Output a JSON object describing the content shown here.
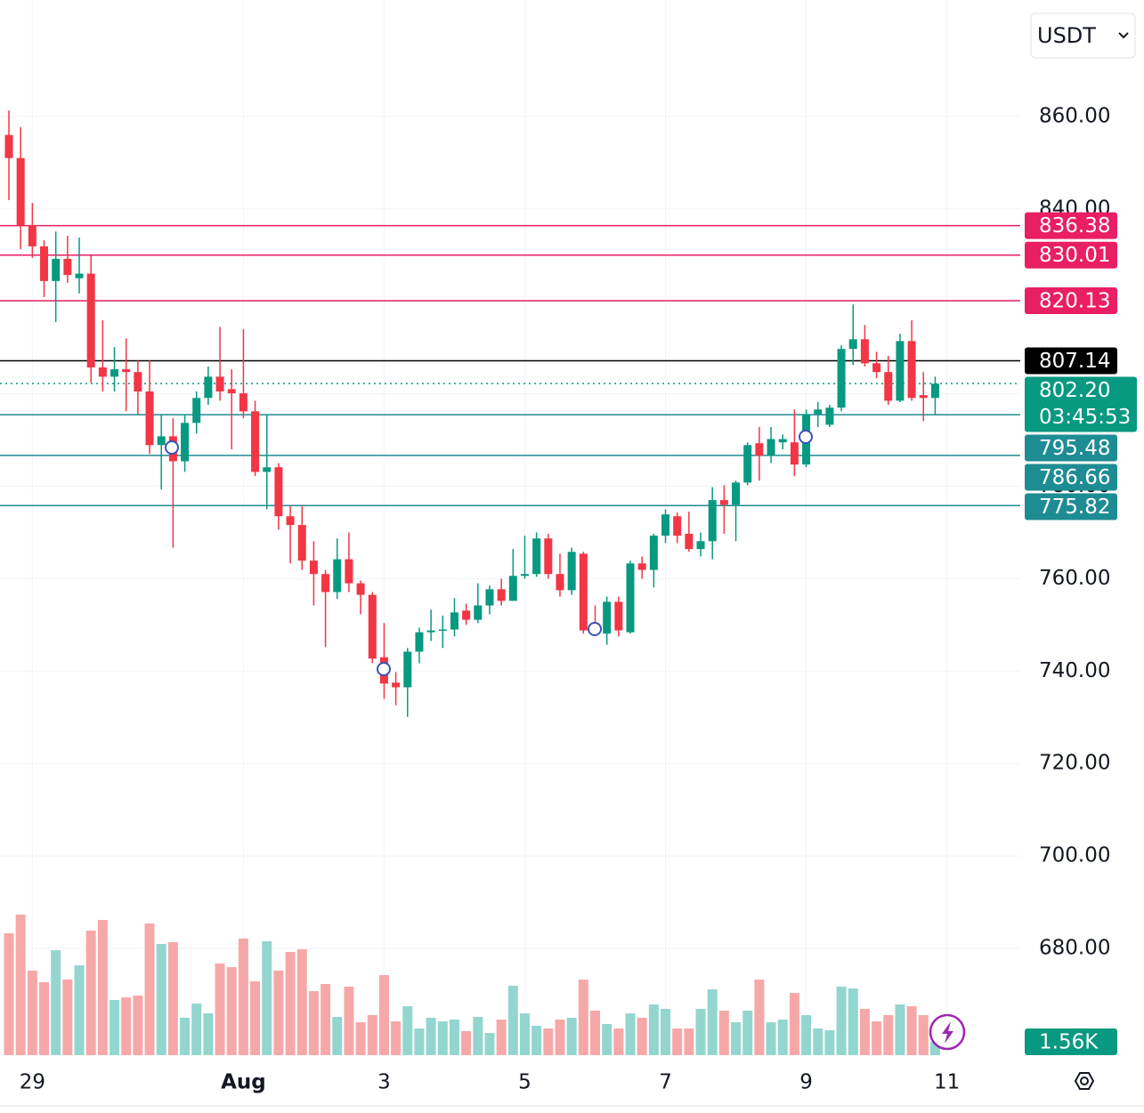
{
  "chart_data": {
    "type": "candlestick",
    "currency_selector": "USDT",
    "categories": [
      null,
      null,
      "29",
      null,
      null,
      null,
      null,
      null,
      null,
      null,
      null,
      null,
      null,
      null,
      null,
      null,
      null,
      null,
      null,
      null,
      "Aug",
      null,
      null,
      null,
      null,
      null,
      null,
      null,
      null,
      null,
      null,
      null,
      "3",
      null,
      null,
      null,
      null,
      null,
      null,
      null,
      null,
      null,
      null,
      null,
      "5",
      null,
      null,
      null,
      null,
      null,
      null,
      null,
      null,
      null,
      null,
      null,
      "7",
      null,
      null,
      null,
      null,
      null,
      null,
      null,
      null,
      null,
      null,
      null,
      "9",
      null,
      null,
      null,
      null,
      null,
      null,
      null,
      null,
      null,
      null,
      null,
      "11"
    ],
    "open": [
      856.0,
      851.0,
      836.5,
      831.9,
      824.4,
      829.2,
      825.0,
      826.0,
      805.7,
      803.7,
      805.3,
      804.7,
      800.5,
      788.9,
      790.8,
      785.4,
      793.7,
      799.1,
      803.7,
      801.0,
      800.1,
      796.2,
      783.1,
      784.1,
      773.5,
      771.6,
      763.9,
      761.0,
      757.1,
      764.2,
      759.0,
      756.5,
      743.0,
      737.5,
      736.5,
      744.2,
      748.4,
      748.8,
      749.0,
      753.1,
      751.1,
      754.2,
      757.7,
      755.2,
      760.6,
      761.0,
      768.7,
      761.0,
      757.5,
      765.4,
      750.4,
      748.1,
      755.0,
      748.4,
      763.3,
      761.9,
      769.3,
      773.5,
      769.7,
      766.4,
      768.1,
      777.0,
      776.0,
      780.8,
      789.3,
      786.6,
      789.5,
      789.5,
      784.7,
      795.6,
      793.3,
      797.0,
      809.7,
      811.8,
      806.6,
      804.7,
      798.5,
      811.4,
      799.7,
      799.1,
      null
    ],
    "high": [
      861.3,
      857.7,
      841.3,
      833.2,
      835.1,
      834.2,
      833.8,
      830.0,
      815.9,
      810.1,
      812.0,
      807.2,
      807.2,
      795.6,
      794.7,
      795.6,
      800.5,
      805.9,
      814.5,
      805.3,
      814.0,
      798.5,
      795.6,
      785.0,
      775.8,
      775.8,
      768.1,
      761.9,
      768.7,
      770.0,
      759.6,
      757.1,
      750.4,
      739.8,
      745.0,
      749.4,
      753.3,
      752.0,
      755.8,
      754.6,
      759.0,
      758.5,
      760.0,
      766.4,
      769.3,
      770.0,
      769.7,
      765.4,
      766.7,
      765.8,
      754.2,
      756.1,
      756.1,
      763.9,
      764.8,
      769.7,
      775.0,
      774.3,
      774.5,
      770.0,
      779.8,
      780.2,
      781.2,
      789.5,
      792.8,
      792.8,
      791.2,
      796.6,
      796.6,
      798.2,
      797.6,
      810.5,
      819.3,
      814.9,
      809.1,
      808.2,
      813.0,
      815.9,
      804.7,
      803.7,
      null
    ],
    "low": [
      841.9,
      831.3,
      829.4,
      820.9,
      815.5,
      824.0,
      821.7,
      802.4,
      800.5,
      800.5,
      796.2,
      795.6,
      787.0,
      779.3,
      766.7,
      783.1,
      791.4,
      797.6,
      798.5,
      788.0,
      794.7,
      782.2,
      775.0,
      770.6,
      763.3,
      761.9,
      754.2,
      745.2,
      755.6,
      757.1,
      752.3,
      741.7,
      734.0,
      732.6,
      730.1,
      741.7,
      746.5,
      745.0,
      747.5,
      750.0,
      750.4,
      752.3,
      754.2,
      755.2,
      760.0,
      760.4,
      760.0,
      756.1,
      756.5,
      748.1,
      748.1,
      745.7,
      747.5,
      748.1,
      760.0,
      758.1,
      767.7,
      767.7,
      765.8,
      764.8,
      764.2,
      769.7,
      768.1,
      780.2,
      781.2,
      785.0,
      788.0,
      782.2,
      784.1,
      792.8,
      792.8,
      796.2,
      806.2,
      805.9,
      803.4,
      797.6,
      798.2,
      798.5,
      794.1,
      795.6,
      null
    ],
    "close": [
      851.0,
      836.5,
      831.9,
      824.4,
      829.2,
      825.7,
      826.0,
      805.7,
      803.7,
      805.3,
      804.7,
      800.5,
      788.9,
      790.8,
      785.4,
      793.7,
      799.1,
      803.7,
      800.5,
      800.1,
      796.2,
      783.1,
      784.1,
      773.5,
      771.6,
      763.9,
      761.0,
      757.1,
      764.2,
      759.0,
      756.5,
      742.7,
      737.3,
      736.5,
      744.2,
      748.4,
      748.8,
      749.0,
      752.7,
      751.1,
      754.2,
      757.7,
      755.2,
      760.6,
      761.0,
      768.7,
      761.0,
      757.5,
      765.8,
      748.8,
      748.8,
      755.0,
      748.8,
      763.3,
      761.9,
      769.3,
      773.9,
      769.3,
      766.4,
      768.1,
      777.0,
      776.0,
      780.8,
      788.9,
      786.6,
      790.2,
      790.2,
      784.7,
      795.6,
      796.6,
      797.0,
      809.7,
      811.8,
      806.6,
      804.7,
      798.5,
      811.4,
      799.1,
      799.1,
      802.2,
      null
    ],
    "volume": [
      14270,
      16460,
      9900,
      8540,
      12290,
      8850,
      10520,
      14580,
      15830,
      6460,
      6770,
      6980,
      15420,
      13020,
      13230,
      4380,
      6040,
      4900,
      10730,
      10310,
      13650,
      8650,
      13330,
      9900,
      12080,
      12400,
      7500,
      8330,
      4480,
      8020,
      3850,
      4690,
      9380,
      3960,
      5730,
      3130,
      4380,
      3960,
      4170,
      2810,
      4480,
      2600,
      4170,
      8130,
      4900,
      3440,
      3130,
      4170,
      4380,
      8850,
      5210,
      3650,
      3130,
      4900,
      4380,
      5940,
      5420,
      3130,
      3130,
      5420,
      7710,
      5210,
      3850,
      5210,
      8850,
      3850,
      4170,
      7290,
      4690,
      3130,
      2920,
      8020,
      7810,
      5420,
      3960,
      4690,
      5940,
      5730,
      4690,
      1560,
      null
    ],
    "volume_badge": {
      "value": 1560,
      "label": "1.56K"
    },
    "up_color": "#089981",
    "down_color": "#f23645",
    "volume_up_color": "#93d6cf",
    "volume_down_color": "#f6a8a8",
    "ylim": [
      656.9,
      885.2
    ],
    "yticks": [
      {
        "value": 680,
        "label": "680.00"
      },
      {
        "value": 700,
        "label": "700.00"
      },
      {
        "value": 720,
        "label": "720.00"
      },
      {
        "value": 740,
        "label": "740.00"
      },
      {
        "value": 760,
        "label": "760.00"
      },
      {
        "value": 780,
        "label": "780.00"
      },
      {
        "value": 800,
        "label": "800.00"
      },
      {
        "value": 820,
        "label": "820.00"
      },
      {
        "value": 840,
        "label": "840.00"
      },
      {
        "value": 860,
        "label": "860.00"
      }
    ],
    "volume_ylim": [
      0,
      20000
    ],
    "grid": true,
    "price_lines": [
      {
        "value": 836.38,
        "color": "#e91e63"
      },
      {
        "value": 830.01,
        "color": "#e91e63"
      },
      {
        "value": 820.13,
        "color": "#e91e63"
      },
      {
        "value": 807.14,
        "color": "#000000"
      },
      {
        "value": 802.2,
        "label": "802.20",
        "countdown": "03:45:53",
        "color": "#089981",
        "dotted": true
      },
      {
        "value": 795.48,
        "color": "#1e8c93"
      },
      {
        "value": 786.66,
        "color": "#1e8c93"
      },
      {
        "value": 775.82,
        "color": "#1e8c93"
      }
    ]
  }
}
